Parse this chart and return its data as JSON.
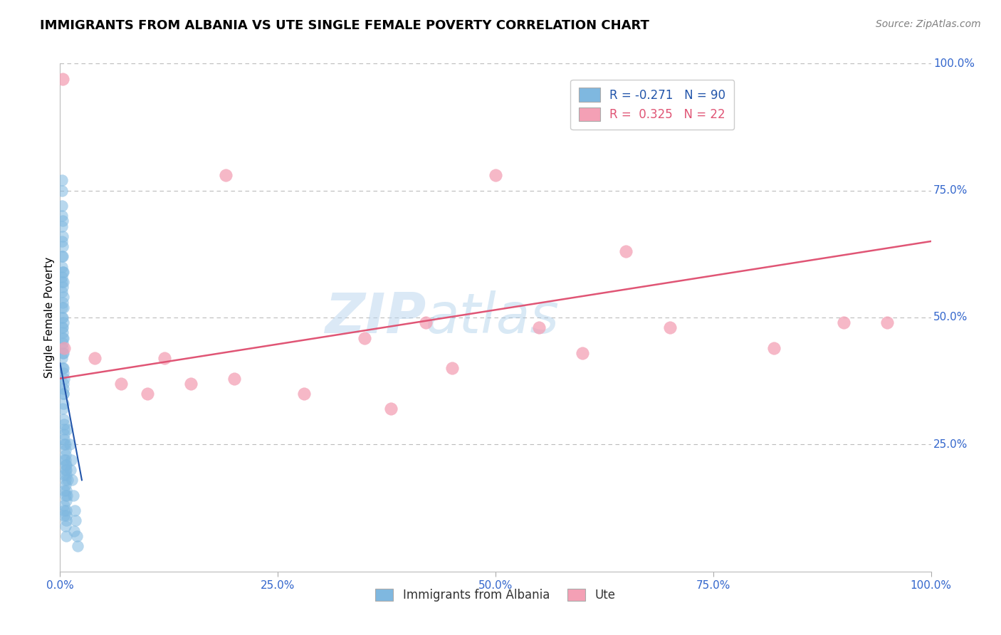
{
  "title": "IMMIGRANTS FROM ALBANIA VS UTE SINGLE FEMALE POVERTY CORRELATION CHART",
  "source_text": "Source: ZipAtlas.com",
  "ylabel": "Single Female Poverty",
  "watermark_zip": "ZIP",
  "watermark_atlas": "atlas",
  "xlim": [
    0.0,
    1.0
  ],
  "ylim": [
    0.0,
    1.0
  ],
  "xticks": [
    0.0,
    0.25,
    0.5,
    0.75,
    1.0
  ],
  "yticks": [
    0.0,
    0.25,
    0.5,
    0.75,
    1.0
  ],
  "xticklabels": [
    "0.0%",
    "25.0%",
    "50.0%",
    "75.0%",
    "100.0%"
  ],
  "yticklabels": [
    "0.0%",
    "25.0%",
    "50.0%",
    "75.0%",
    "100.0%"
  ],
  "blue_color": "#7fb8e0",
  "pink_color": "#f4a0b5",
  "blue_line_color": "#2255aa",
  "pink_line_color": "#e05575",
  "legend_blue_label": "Immigrants from Albania",
  "legend_pink_label": "Ute",
  "R_blue": -0.271,
  "N_blue": 90,
  "R_pink": 0.325,
  "N_pink": 22,
  "blue_scatter_x": [
    0.005,
    0.003,
    0.008,
    0.002,
    0.006,
    0.004,
    0.007,
    0.003,
    0.009,
    0.002,
    0.004,
    0.006,
    0.003,
    0.005,
    0.002,
    0.007,
    0.004,
    0.003,
    0.006,
    0.002,
    0.005,
    0.004,
    0.003,
    0.007,
    0.002,
    0.006,
    0.004,
    0.003,
    0.005,
    0.002,
    0.008,
    0.003,
    0.004,
    0.006,
    0.002,
    0.005,
    0.007,
    0.003,
    0.004,
    0.002,
    0.006,
    0.003,
    0.005,
    0.004,
    0.002,
    0.007,
    0.003,
    0.005,
    0.004,
    0.006,
    0.002,
    0.003,
    0.005,
    0.004,
    0.007,
    0.002,
    0.006,
    0.003,
    0.004,
    0.005,
    0.002,
    0.007,
    0.003,
    0.004,
    0.006,
    0.002,
    0.005,
    0.003,
    0.004,
    0.007,
    0.002,
    0.005,
    0.003,
    0.004,
    0.006,
    0.002,
    0.005,
    0.007,
    0.003,
    0.004,
    0.012,
    0.015,
    0.018,
    0.013,
    0.016,
    0.011,
    0.02,
    0.017,
    0.014,
    0.019
  ],
  "blue_scatter_y": [
    0.38,
    0.32,
    0.28,
    0.42,
    0.25,
    0.35,
    0.21,
    0.45,
    0.18,
    0.48,
    0.3,
    0.22,
    0.4,
    0.27,
    0.5,
    0.2,
    0.35,
    0.43,
    0.24,
    0.52,
    0.29,
    0.37,
    0.46,
    0.19,
    0.55,
    0.23,
    0.39,
    0.48,
    0.26,
    0.57,
    0.15,
    0.44,
    0.33,
    0.21,
    0.58,
    0.28,
    0.16,
    0.47,
    0.36,
    0.6,
    0.2,
    0.5,
    0.25,
    0.4,
    0.62,
    0.14,
    0.53,
    0.22,
    0.43,
    0.18,
    0.65,
    0.56,
    0.19,
    0.46,
    0.12,
    0.68,
    0.17,
    0.59,
    0.49,
    0.16,
    0.7,
    0.11,
    0.62,
    0.52,
    0.15,
    0.72,
    0.13,
    0.64,
    0.54,
    0.1,
    0.75,
    0.12,
    0.66,
    0.57,
    0.09,
    0.77,
    0.11,
    0.07,
    0.69,
    0.59,
    0.2,
    0.15,
    0.1,
    0.22,
    0.08,
    0.25,
    0.05,
    0.12,
    0.18,
    0.07
  ],
  "pink_scatter_x": [
    0.003,
    0.005,
    0.15,
    0.04,
    0.19,
    0.35,
    0.5,
    0.07,
    0.12,
    0.65,
    0.7,
    0.9,
    0.82,
    0.55,
    0.42,
    0.6,
    0.1,
    0.28,
    0.38,
    0.2,
    0.45,
    0.95
  ],
  "pink_scatter_y": [
    0.97,
    0.44,
    0.37,
    0.42,
    0.78,
    0.46,
    0.78,
    0.37,
    0.42,
    0.63,
    0.48,
    0.49,
    0.44,
    0.48,
    0.49,
    0.43,
    0.35,
    0.35,
    0.32,
    0.38,
    0.4,
    0.49
  ],
  "pink_line_x0": 0.0,
  "pink_line_y0": 0.38,
  "pink_line_x1": 1.0,
  "pink_line_y1": 0.65,
  "blue_line_x0": 0.0,
  "blue_line_y0": 0.41,
  "blue_line_x1": 0.025,
  "blue_line_y1": 0.18,
  "title_fontsize": 13,
  "axis_label_fontsize": 11,
  "tick_fontsize": 11,
  "source_fontsize": 10,
  "tick_color": "#3366cc",
  "axis_color": "#bbbbbb",
  "grid_color": "#bbbbbb"
}
